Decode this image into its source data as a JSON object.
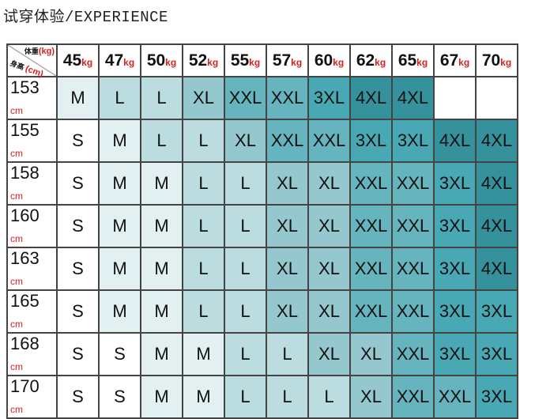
{
  "title": "试穿体验/EXPERIENCE",
  "corner": {
    "weight_label": "体重",
    "weight_unit": "(kg)",
    "height_label": "身高",
    "height_unit": "(cm)"
  },
  "weight_unit": "kg",
  "height_unit": "cm",
  "weights": [
    "45",
    "47",
    "50",
    "52",
    "55",
    "57",
    "60",
    "62",
    "65",
    "67",
    "70"
  ],
  "size_colors": {
    "S": "#ffffff",
    "M": "#e2f0f1",
    "L": "#bcdde0",
    "XL": "#94c8ce",
    "XXL": "#66b4bd",
    "3XL": "#48a9b5",
    "4XL": "#35929d",
    "": "#ffffff"
  },
  "rows": [
    {
      "height": "153",
      "sizes": [
        "M",
        "L",
        "L",
        "XL",
        "XXL",
        "XXL",
        "3XL",
        "4XL",
        "4XL",
        "",
        ""
      ]
    },
    {
      "height": "155",
      "sizes": [
        "S",
        "M",
        "L",
        "L",
        "XL",
        "XXL",
        "XXL",
        "3XL",
        "3XL",
        "4XL",
        "4XL"
      ]
    },
    {
      "height": "158",
      "sizes": [
        "S",
        "M",
        "M",
        "L",
        "L",
        "XL",
        "XL",
        "XXL",
        "XXL",
        "3XL",
        "4XL"
      ]
    },
    {
      "height": "160",
      "sizes": [
        "S",
        "M",
        "M",
        "L",
        "L",
        "XL",
        "XL",
        "XXL",
        "XXL",
        "3XL",
        "4XL"
      ]
    },
    {
      "height": "163",
      "sizes": [
        "S",
        "M",
        "M",
        "L",
        "L",
        "XL",
        "XL",
        "XXL",
        "XXL",
        "3XL",
        "4XL"
      ]
    },
    {
      "height": "165",
      "sizes": [
        "S",
        "M",
        "M",
        "L",
        "L",
        "XL",
        "XL",
        "XXL",
        "XXL",
        "3XL",
        "3XL"
      ]
    },
    {
      "height": "168",
      "sizes": [
        "S",
        "S",
        "M",
        "M",
        "L",
        "L",
        "XL",
        "XL",
        "XXL",
        "3XL",
        "3XL"
      ]
    },
    {
      "height": "170",
      "sizes": [
        "S",
        "S",
        "M",
        "M",
        "L",
        "L",
        "L",
        "XL",
        "XXL",
        "XXL",
        "3XL"
      ]
    }
  ]
}
